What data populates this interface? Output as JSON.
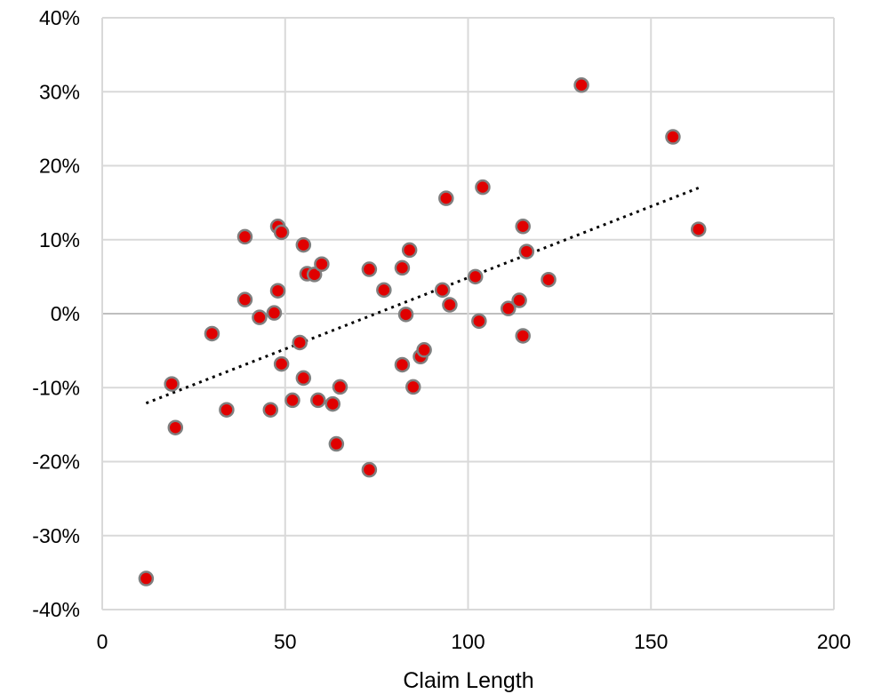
{
  "chart_data": {
    "type": "scatter",
    "title": "",
    "xlabel": "Claim Length",
    "ylabel": "",
    "xlim": [
      0,
      200
    ],
    "ylim": [
      -0.4,
      0.4
    ],
    "x_ticks": [
      0,
      50,
      100,
      150,
      200
    ],
    "x_tick_labels": [
      "0",
      "50",
      "100",
      "150",
      "200"
    ],
    "y_ticks": [
      0.4,
      0.3,
      0.2,
      0.1,
      0.0,
      -0.1,
      -0.2,
      -0.3,
      -0.4
    ],
    "y_tick_labels": [
      "40%",
      "30%",
      "20%",
      "10%",
      "0%",
      "-10%",
      "-20%",
      "-30%",
      "-40%"
    ],
    "grid": true,
    "legend": "none",
    "series": [
      {
        "marker_color": "#e00000",
        "marker_edge_color": "#7f7f7f",
        "points": [
          {
            "x": 12,
            "y": -0.358
          },
          {
            "x": 19,
            "y": -0.095
          },
          {
            "x": 20,
            "y": -0.154
          },
          {
            "x": 30,
            "y": -0.027
          },
          {
            "x": 34,
            "y": -0.13
          },
          {
            "x": 39,
            "y": 0.104
          },
          {
            "x": 39,
            "y": 0.019
          },
          {
            "x": 43,
            "y": -0.005
          },
          {
            "x": 46,
            "y": -0.13
          },
          {
            "x": 47,
            "y": 0.001
          },
          {
            "x": 48,
            "y": 0.118
          },
          {
            "x": 48,
            "y": 0.031
          },
          {
            "x": 49,
            "y": 0.11
          },
          {
            "x": 49,
            "y": -0.068
          },
          {
            "x": 52,
            "y": -0.117
          },
          {
            "x": 54,
            "y": -0.039
          },
          {
            "x": 55,
            "y": 0.093
          },
          {
            "x": 55,
            "y": -0.087
          },
          {
            "x": 56,
            "y": 0.054
          },
          {
            "x": 58,
            "y": 0.053
          },
          {
            "x": 59,
            "y": -0.117
          },
          {
            "x": 60,
            "y": 0.067
          },
          {
            "x": 63,
            "y": -0.122
          },
          {
            "x": 64,
            "y": -0.176
          },
          {
            "x": 65,
            "y": -0.099
          },
          {
            "x": 73,
            "y": 0.06
          },
          {
            "x": 73,
            "y": -0.211
          },
          {
            "x": 77,
            "y": 0.032
          },
          {
            "x": 82,
            "y": 0.062
          },
          {
            "x": 82,
            "y": -0.069
          },
          {
            "x": 83,
            "y": -0.001
          },
          {
            "x": 84,
            "y": 0.086
          },
          {
            "x": 85,
            "y": -0.099
          },
          {
            "x": 87,
            "y": -0.058
          },
          {
            "x": 88,
            "y": -0.049
          },
          {
            "x": 93,
            "y": 0.032
          },
          {
            "x": 94,
            "y": 0.156
          },
          {
            "x": 95,
            "y": 0.012
          },
          {
            "x": 102,
            "y": 0.05
          },
          {
            "x": 103,
            "y": -0.01
          },
          {
            "x": 104,
            "y": 0.171
          },
          {
            "x": 111,
            "y": 0.007
          },
          {
            "x": 114,
            "y": 0.018
          },
          {
            "x": 115,
            "y": 0.118
          },
          {
            "x": 115,
            "y": -0.03
          },
          {
            "x": 116,
            "y": 0.084
          },
          {
            "x": 122,
            "y": 0.046
          },
          {
            "x": 131,
            "y": 0.309
          },
          {
            "x": 156,
            "y": 0.239
          },
          {
            "x": 163,
            "y": 0.114
          }
        ]
      }
    ],
    "trendline": {
      "style": "dotted",
      "color": "#000000",
      "x_start": 12,
      "y_start": -0.121,
      "x_end": 163,
      "y_end": 0.17
    }
  }
}
